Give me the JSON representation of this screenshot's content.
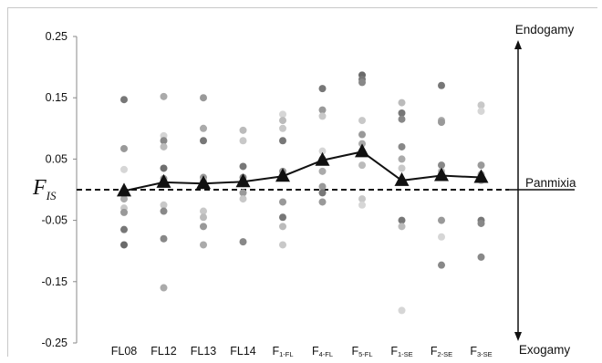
{
  "chart_data": {
    "type": "scatter",
    "ylabel": {
      "main": "F",
      "sub": "IS"
    },
    "ylim": [
      -0.25,
      0.25
    ],
    "yticks": [
      "0.25",
      "0.15",
      "0.05",
      "-0.05",
      "-0.15",
      "-0.25"
    ],
    "ytick_values": [
      0.25,
      0.15,
      0.05,
      -0.05,
      -0.15,
      -0.25
    ],
    "grid": false,
    "categories": [
      {
        "main": "FL08",
        "sub": ""
      },
      {
        "main": "FL12",
        "sub": ""
      },
      {
        "main": "FL13",
        "sub": ""
      },
      {
        "main": "FL14",
        "sub": ""
      },
      {
        "main": "F",
        "sub": "1-FL"
      },
      {
        "main": "F",
        "sub": "4-FL"
      },
      {
        "main": "F",
        "sub": "5-FL"
      },
      {
        "main": "F",
        "sub": "1-SE"
      },
      {
        "main": "F",
        "sub": "2-SE"
      },
      {
        "main": "F",
        "sub": "3-SE"
      }
    ],
    "mean_series": [
      -0.002,
      0.012,
      0.01,
      0.013,
      0.022,
      0.048,
      0.062,
      0.015,
      0.023,
      0.02
    ],
    "reference_line": {
      "value": 0.0,
      "style": "dashed"
    },
    "points": [
      [
        0.147,
        0.067,
        0.033,
        -0.005,
        -0.015,
        -0.03,
        -0.037,
        -0.065,
        -0.09
      ],
      [
        0.152,
        0.088,
        0.08,
        0.07,
        0.035,
        0.018,
        -0.025,
        -0.035,
        -0.08,
        -0.16
      ],
      [
        0.15,
        0.1,
        0.08,
        0.02,
        0.015,
        -0.035,
        -0.045,
        -0.06,
        -0.09
      ],
      [
        0.097,
        0.08,
        0.038,
        0.02,
        0.01,
        -0.005,
        -0.015,
        -0.085
      ],
      [
        0.123,
        0.113,
        0.1,
        0.08,
        0.03,
        0.02,
        -0.02,
        -0.045,
        -0.06,
        -0.09
      ],
      [
        0.165,
        0.13,
        0.12,
        0.063,
        0.05,
        0.03,
        0.005,
        -0.005,
        -0.02
      ],
      [
        0.187,
        0.18,
        0.175,
        0.113,
        0.09,
        0.075,
        0.04,
        -0.015,
        -0.025
      ],
      [
        0.142,
        0.125,
        0.115,
        0.07,
        0.05,
        0.035,
        -0.05,
        -0.06,
        -0.197
      ],
      [
        0.17,
        0.113,
        0.11,
        0.04,
        0.03,
        0.025,
        -0.05,
        -0.077,
        -0.123
      ],
      [
        0.138,
        0.128,
        0.04,
        0.025,
        0.015,
        -0.05,
        -0.055,
        -0.11
      ]
    ],
    "point_shades": [
      [
        "#777",
        "#999",
        "#d6d6d6",
        "#bbb",
        "#aaa",
        "#c8c8c8",
        "#999",
        "#777",
        "#6a6a6a"
      ],
      [
        "#aaa",
        "#d4d4d4",
        "#888",
        "#bbb",
        "#6f6f6f",
        "#999",
        "#c8c8c8",
        "#888",
        "#888",
        "#aaa"
      ],
      [
        "#999",
        "#aaa",
        "#777",
        "#999",
        "#bbb",
        "#c8c8c8",
        "#bbb",
        "#999",
        "#aaa"
      ],
      [
        "#bbb",
        "#c8c8c8",
        "#777",
        "#888",
        "#aaa",
        "#999",
        "#c8c8c8",
        "#888"
      ],
      [
        "#d6d6d6",
        "#bbb",
        "#c8c8c8",
        "#777",
        "#999",
        "#aaa",
        "#999",
        "#777",
        "#bbb",
        "#c8c8c8"
      ],
      [
        "#777",
        "#999",
        "#c8c8c8",
        "#d6d6d6",
        "#888",
        "#aaa",
        "#999",
        "#777",
        "#999"
      ],
      [
        "#6a6a6a",
        "#777",
        "#888",
        "#c8c8c8",
        "#999",
        "#aaa",
        "#bbb",
        "#c8c8c8",
        "#d6d6d6"
      ],
      [
        "#bbb",
        "#777",
        "#888",
        "#888",
        "#aaa",
        "#c8c8c8",
        "#777",
        "#bbb",
        "#d6d6d6"
      ],
      [
        "#777",
        "#aaa",
        "#999",
        "#888",
        "#bbb",
        "#c8c8c8",
        "#999",
        "#d6d6d6",
        "#888"
      ],
      [
        "#c8c8c8",
        "#d6d6d6",
        "#999",
        "#aaa",
        "#bbb",
        "#777",
        "#888",
        "#888"
      ]
    ],
    "annotations": {
      "top": "Endogamy",
      "middle": "Panmixia",
      "bottom": "Exogamy"
    },
    "colors": {
      "axis": "#888888",
      "mean_marker": "#111111",
      "mean_line": "#111111",
      "reference": "#111111",
      "arrow": "#111111"
    }
  }
}
